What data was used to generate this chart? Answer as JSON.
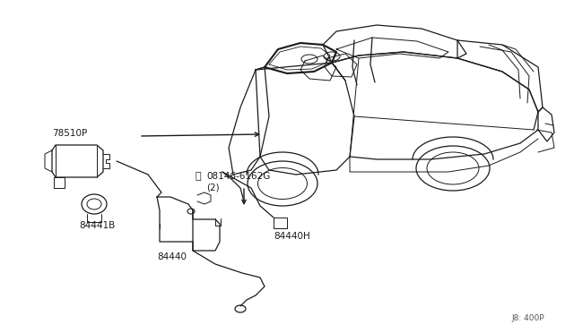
{
  "background_color": "#ffffff",
  "line_color": "#1a1a1a",
  "diagram_ref": "J8: 400P",
  "fig_width": 6.4,
  "fig_height": 3.72,
  "dpi": 100,
  "car_color": "#ffffff",
  "label_78510P": "78510P",
  "label_84441B": "84441B",
  "label_84440": "84440",
  "label_84440H": "84440H",
  "label_bolt": "08146-6162G",
  "label_bolt2": "(2)",
  "label_ref": "J8: 400P"
}
